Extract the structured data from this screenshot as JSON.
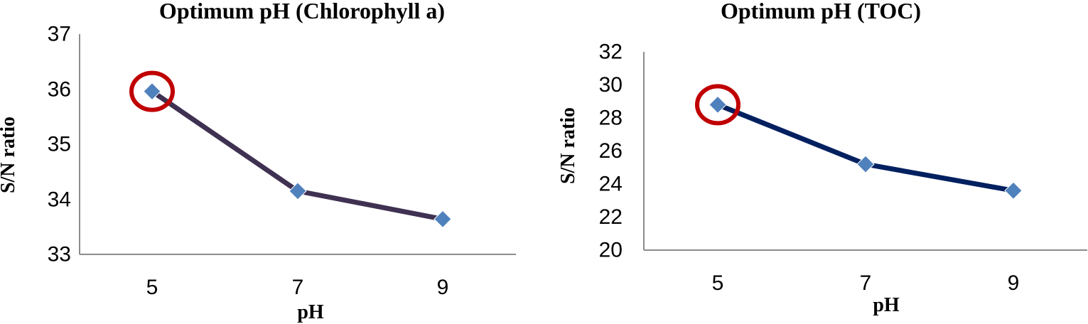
{
  "colors": {
    "marker": "#4f81bd",
    "highlight": "#c00000",
    "axis": "#8c8c8c"
  },
  "chart_data": [
    {
      "type": "line",
      "title": "Optimum pH (Chlorophyll a)",
      "xlabel": "pH",
      "ylabel": "S/N ratio",
      "categories": [
        "5",
        "7",
        "9"
      ],
      "x_tick_labels": [
        "5",
        "7",
        "9"
      ],
      "y_tick_labels": [
        "33",
        "34",
        "35",
        "36",
        "37"
      ],
      "ylim": [
        33,
        37
      ],
      "y_step": 1,
      "grid": false,
      "legend": "none",
      "series": [
        {
          "values": [
            35.96,
            34.15,
            33.64
          ],
          "color": "#3f3151"
        }
      ],
      "highlight_index": 0
    },
    {
      "type": "line",
      "title": "Optimum pH (TOC)",
      "xlabel": "pH",
      "ylabel": "S/N ratio",
      "categories": [
        "5",
        "7",
        "9"
      ],
      "x_tick_labels": [
        "5",
        "7",
        "9"
      ],
      "y_tick_labels": [
        "20",
        "22",
        "24",
        "26",
        "28",
        "30",
        "32"
      ],
      "ylim": [
        20,
        32
      ],
      "y_step": 2,
      "grid": false,
      "legend": "none",
      "series": [
        {
          "values": [
            28.8,
            25.2,
            23.6
          ],
          "color": "#002060"
        }
      ],
      "highlight_index": 0
    }
  ]
}
